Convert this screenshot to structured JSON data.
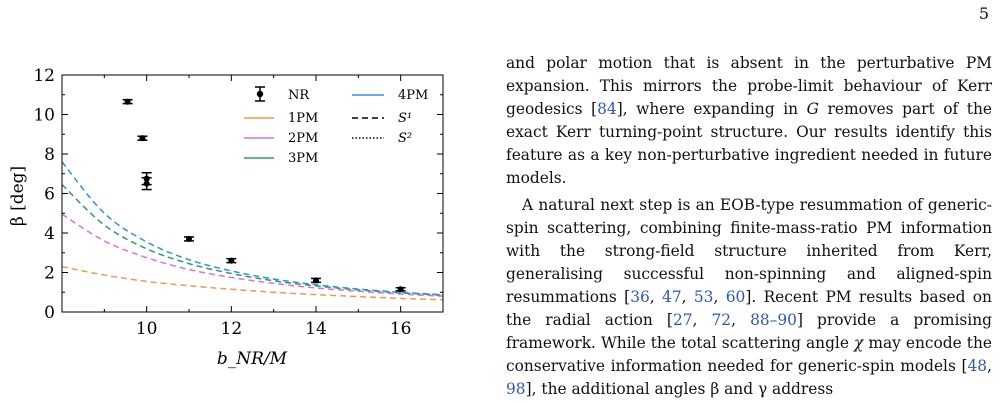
{
  "page_number": "5",
  "figure": {
    "xlabel": "b_NR/M",
    "ylabel": "β [deg]",
    "legend": {
      "nr": "NR",
      "pm1": "1PM",
      "pm2": "2PM",
      "pm3": "3PM",
      "pm4": "4PM",
      "s1": "S¹",
      "s2": "S²"
    },
    "x_ticks": [
      "10",
      "12",
      "14",
      "16"
    ],
    "y_ticks": [
      "0",
      "2",
      "4",
      "6",
      "8",
      "10",
      "12"
    ]
  },
  "chart_data": {
    "type": "scatter",
    "xlabel": "b_NR/M",
    "ylabel": "β [deg]",
    "xlim": [
      8,
      17
    ],
    "ylim": [
      0,
      12
    ],
    "legend_position": "top-right",
    "grid": false,
    "nr_points": [
      {
        "x": 9.55,
        "y": 10.65,
        "err": 0.1
      },
      {
        "x": 9.9,
        "y": 8.8,
        "err": 0.1
      },
      {
        "x": 10.0,
        "y": 6.75,
        "err": 0.3
      },
      {
        "x": 10.0,
        "y": 6.5,
        "err": 0.3
      },
      {
        "x": 11.0,
        "y": 3.7,
        "err": 0.1
      },
      {
        "x": 12.0,
        "y": 2.6,
        "err": 0.1
      },
      {
        "x": 14.0,
        "y": 1.6,
        "err": 0.1
      },
      {
        "x": 16.0,
        "y": 1.15,
        "err": 0.08
      }
    ],
    "series": [
      {
        "name": "1PM",
        "color": "#ee9a4d",
        "x": [
          8,
          9,
          10,
          11,
          12,
          13,
          14,
          15,
          16,
          17
        ],
        "y": [
          2.3,
          1.87,
          1.55,
          1.33,
          1.15,
          1.0,
          0.88,
          0.78,
          0.69,
          0.62
        ]
      },
      {
        "name": "2PM",
        "color": "#dc6fe0",
        "x": [
          8,
          9,
          10,
          11,
          12,
          13,
          14,
          15,
          16,
          17
        ],
        "y": [
          4.95,
          3.6,
          2.75,
          2.15,
          1.75,
          1.45,
          1.22,
          1.05,
          0.91,
          0.8
        ]
      },
      {
        "name": "3PM",
        "color": "#2ca05a",
        "x": [
          8,
          9,
          10,
          11,
          12,
          13,
          14,
          15,
          16,
          17
        ],
        "y": [
          6.45,
          4.4,
          3.2,
          2.45,
          1.95,
          1.58,
          1.32,
          1.12,
          0.97,
          0.85
        ]
      },
      {
        "name": "4PM",
        "color": "#2f8fe8",
        "x": [
          8,
          9,
          10,
          11,
          12,
          13,
          14,
          15,
          16,
          17
        ],
        "y": [
          7.6,
          5.0,
          3.55,
          2.65,
          2.08,
          1.67,
          1.38,
          1.16,
          1.0,
          0.87
        ]
      }
    ]
  },
  "text": {
    "p1_a": "and polar motion that is absent in the perturbative PM expansion. This mirrors the probe-limit behaviour of Kerr geodesics [",
    "p1_cite1": "84",
    "p1_b": "], where expanding in ",
    "p1_var": "G",
    "p1_c": " removes part of the exact Kerr turning-point structure. Our results identify this feature as a key non-perturbative ingredient needed in future models.",
    "p2_a": "A natural next step is an EOB-type resummation of generic-spin scattering, combining finite-mass-ratio PM information with the strong-field structure inherited from Kerr, generalising successful non-spinning and aligned-spin resummations [",
    "p2_c1": "36",
    "p2_s1": ", ",
    "p2_c2": "47",
    "p2_s2": ", ",
    "p2_c3": "53",
    "p2_s3": ", ",
    "p2_c4": "60",
    "p2_b": "]. Recent PM results based on the radial action [",
    "p2_c5": "27",
    "p2_s5": ", ",
    "p2_c6": "72",
    "p2_s6": ", ",
    "p2_c7": "88–90",
    "p2_c": "] provide a promising framework. While the total scattering angle ",
    "p2_var": "χ",
    "p2_d": " may encode the conservative information needed for generic-",
    "p2_e": "spin models [",
    "p2_c8": "48",
    "p2_s8": ", ",
    "p2_c9": "98",
    "p2_f": "], the additional angles β and γ address"
  }
}
